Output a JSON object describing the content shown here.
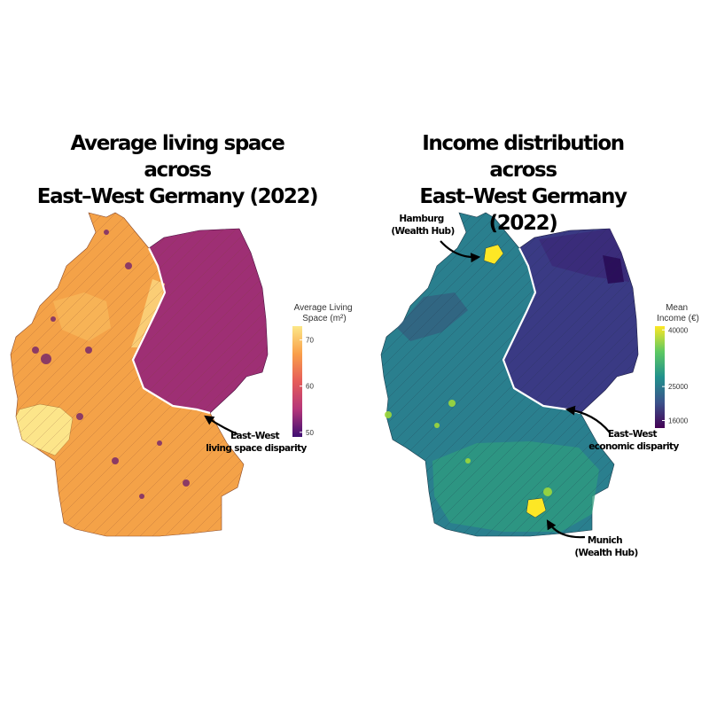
{
  "maps": [
    {
      "title_lines": [
        "Average living space across",
        "East–West Germany (2022)"
      ],
      "legend": {
        "title_lines": [
          "Average Living",
          "Space (m²)"
        ],
        "ticks": [
          50,
          60,
          70
        ],
        "min": 49,
        "max": 73,
        "colors": [
          "#3f0f72",
          "#b5367a",
          "#e55c5a",
          "#f99f4a",
          "#fce788"
        ]
      },
      "region_colors": {
        "west": "#f4a248",
        "east": "#9e2f74",
        "southwest": "#fce58a"
      },
      "annotations": [
        {
          "lines": [
            "East–West",
            "living space disparity"
          ]
        }
      ]
    },
    {
      "title_lines": [
        "Income distribution across",
        "East–West Germany (2022)"
      ],
      "legend": {
        "title_lines": [
          "Mean",
          "Income (€)"
        ],
        "ticks": [
          16000,
          25000,
          40000
        ],
        "min": 14000,
        "max": 41000,
        "colors": [
          "#440154",
          "#3b528b",
          "#21918c",
          "#5ec962",
          "#fde725"
        ]
      },
      "region_colors": {
        "west": "#2a7f8e",
        "east": "#3a3a84",
        "hub": "#fde725"
      },
      "annotations": [
        {
          "lines": [
            "Hamburg",
            "(Wealth Hub)"
          ]
        },
        {
          "lines": [
            "East–West",
            "economic disparity"
          ]
        },
        {
          "lines": [
            "Munich",
            "(Wealth Hub)"
          ]
        }
      ]
    }
  ]
}
